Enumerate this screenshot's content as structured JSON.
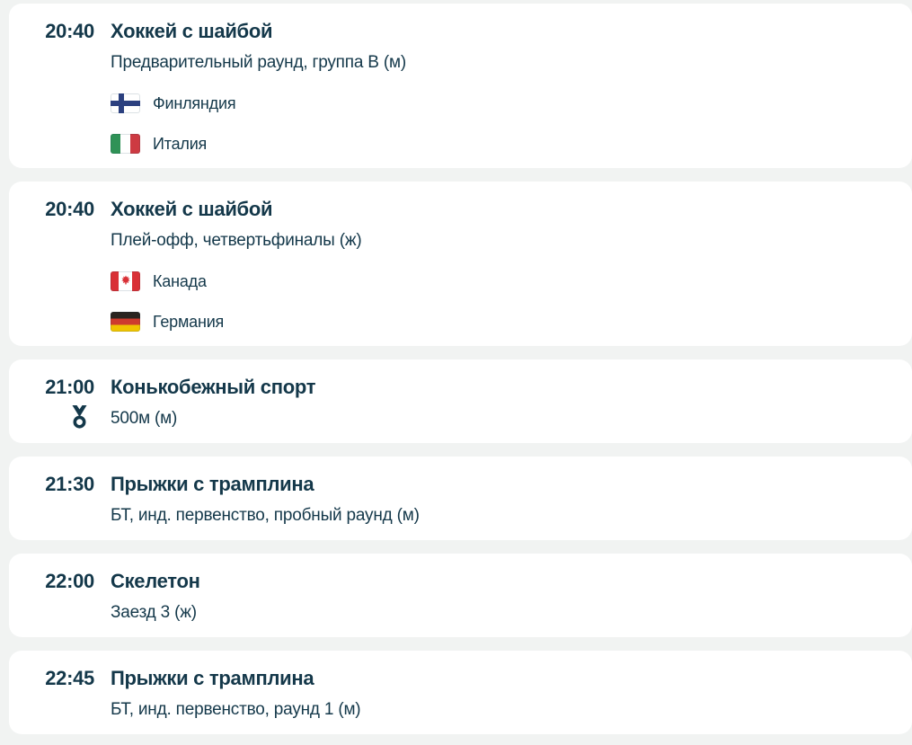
{
  "colors": {
    "text": "#14384a",
    "background": "#f1f3f2",
    "card": "#ffffff",
    "finland-blue": "#2b407f",
    "italy-green": "#2f9256",
    "italy-red": "#cd3a42",
    "canada-red": "#d93036",
    "germany-black": "#2a241f",
    "germany-red": "#ce3b2e",
    "germany-gold": "#f0c400"
  },
  "icons": {
    "medal": "medal-icon",
    "flags": [
      "finland-flag-icon",
      "italy-flag-icon",
      "canada-flag-icon",
      "germany-flag-icon"
    ]
  },
  "events": [
    {
      "time": "20:40",
      "sport": "Хоккей с шайбой",
      "detail": "Предварительный раунд, группа В (м)",
      "medal": false,
      "teams": [
        {
          "name": "Финляндия",
          "flag": "fi"
        },
        {
          "name": "Италия",
          "flag": "it"
        }
      ]
    },
    {
      "time": "20:40",
      "sport": "Хоккей с шайбой",
      "detail": "Плей-офф, четвертьфиналы (ж)",
      "medal": false,
      "teams": [
        {
          "name": "Канада",
          "flag": "ca"
        },
        {
          "name": "Германия",
          "flag": "de"
        }
      ]
    },
    {
      "time": "21:00",
      "sport": "Конькобежный спорт",
      "detail": "500м (м)",
      "medal": true,
      "teams": []
    },
    {
      "time": "21:30",
      "sport": "Прыжки с трамплина",
      "detail": "БТ, инд. первенство, пробный раунд (м)",
      "medal": false,
      "teams": []
    },
    {
      "time": "22:00",
      "sport": "Скелетон",
      "detail": "Заезд 3 (ж)",
      "medal": false,
      "teams": []
    },
    {
      "time": "22:45",
      "sport": "Прыжки с трамплина",
      "detail": "БТ, инд. первенство, раунд 1 (м)",
      "medal": false,
      "teams": []
    }
  ]
}
